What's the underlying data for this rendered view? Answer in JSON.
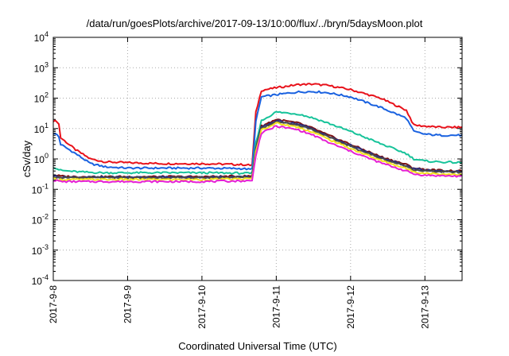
{
  "chart_data": {
    "type": "line",
    "title": "/data/run/goesPlots/archive/2017-09-13/10:00/flux/../bryn/5daysMoon.plot",
    "xlabel": "Coordinated Universal Time (UTC)",
    "ylabel": "cSv/day",
    "y_scale": "log",
    "ylim": [
      0.0001,
      10000
    ],
    "xlim": [
      0,
      5.5
    ],
    "grid": true,
    "x_ticks": [
      {
        "x": 0,
        "label": "2017-9-8"
      },
      {
        "x": 1,
        "label": "2017-9-9"
      },
      {
        "x": 2,
        "label": "2017-9-10"
      },
      {
        "x": 3,
        "label": "2017-9-11"
      },
      {
        "x": 4,
        "label": "2017-9-12"
      },
      {
        "x": 5,
        "label": "2017-9-13"
      }
    ],
    "y_ticks": [
      {
        "value": 0.0001,
        "base": "10",
        "exp": "-4"
      },
      {
        "value": 0.001,
        "base": "10",
        "exp": "-3"
      },
      {
        "value": 0.01,
        "base": "10",
        "exp": "-2"
      },
      {
        "value": 0.1,
        "base": "10",
        "exp": "-1"
      },
      {
        "value": 1,
        "base": "10",
        "exp": "0"
      },
      {
        "value": 10,
        "base": "10",
        "exp": "1"
      },
      {
        "value": 100,
        "base": "10",
        "exp": "2"
      },
      {
        "value": 1000,
        "base": "10",
        "exp": "3"
      },
      {
        "value": 10000,
        "base": "10",
        "exp": "4"
      }
    ],
    "series": [
      {
        "color": "#e8121b",
        "x": [
          0,
          0.07,
          0.1,
          0.3,
          0.5,
          0.7,
          1,
          1.5,
          2,
          2.55,
          2.65,
          2.68,
          2.72,
          2.8,
          3,
          3.3,
          3.5,
          3.7,
          4,
          4.4,
          4.75,
          4.85,
          5,
          5.2,
          5.5
        ],
        "y": [
          18,
          17,
          5,
          2,
          1,
          0.8,
          0.75,
          0.7,
          0.7,
          0.65,
          0.62,
          0.65,
          30,
          180,
          220,
          280,
          290,
          260,
          190,
          100,
          40,
          13,
          12,
          11,
          11
        ]
      },
      {
        "color": "#1a62e0",
        "x": [
          0,
          0.07,
          0.1,
          0.3,
          0.5,
          0.7,
          1,
          1.5,
          2,
          2.55,
          2.65,
          2.68,
          2.72,
          2.8,
          3,
          3.3,
          3.5,
          3.7,
          4,
          4.4,
          4.75,
          4.85,
          5,
          5.2,
          5.5
        ],
        "y": [
          7,
          6,
          3,
          1.5,
          0.7,
          0.55,
          0.5,
          0.5,
          0.5,
          0.48,
          0.45,
          0.48,
          15,
          110,
          130,
          160,
          165,
          150,
          110,
          50,
          22,
          8,
          6.5,
          6,
          6
        ]
      },
      {
        "color": "#17c39a",
        "x": [
          0,
          0.07,
          0.1,
          0.3,
          0.5,
          0.7,
          1,
          1.5,
          2,
          2.55,
          2.65,
          2.68,
          2.72,
          2.8,
          3,
          3.3,
          3.5,
          3.7,
          4,
          4.4,
          4.75,
          4.85,
          5,
          5.2,
          5.5
        ],
        "y": [
          0.55,
          0.45,
          0.42,
          0.38,
          0.36,
          0.35,
          0.35,
          0.35,
          0.35,
          0.34,
          0.33,
          0.35,
          3,
          18,
          35,
          30,
          22,
          15,
          8,
          3.2,
          1.5,
          1,
          0.85,
          0.8,
          0.75
        ]
      },
      {
        "color": "#7d1212",
        "x": [
          0,
          0.07,
          0.1,
          0.3,
          0.5,
          0.7,
          1,
          1.5,
          2,
          2.55,
          2.65,
          2.68,
          2.72,
          2.8,
          3,
          3.3,
          3.5,
          3.7,
          4,
          4.4,
          4.75,
          4.85,
          5,
          5.2,
          5.5
        ],
        "y": [
          0.3,
          0.28,
          0.27,
          0.26,
          0.26,
          0.26,
          0.26,
          0.26,
          0.26,
          0.27,
          0.27,
          0.28,
          2,
          12,
          20,
          15,
          10,
          6,
          3,
          1.2,
          0.65,
          0.5,
          0.45,
          0.42,
          0.4
        ]
      },
      {
        "color": "#2a2f82",
        "x": [
          0,
          0.07,
          0.1,
          0.3,
          0.5,
          0.7,
          1,
          1.5,
          2,
          2.55,
          2.65,
          2.68,
          2.72,
          2.8,
          3,
          3.3,
          3.5,
          3.7,
          4,
          4.4,
          4.75,
          4.85,
          5,
          5.2,
          5.5
        ],
        "y": [
          0.28,
          0.26,
          0.25,
          0.25,
          0.25,
          0.25,
          0.25,
          0.25,
          0.25,
          0.26,
          0.26,
          0.27,
          1.8,
          11,
          18,
          14,
          9.5,
          5.5,
          2.8,
          1.1,
          0.6,
          0.47,
          0.42,
          0.4,
          0.38
        ]
      },
      {
        "color": "#4b4b4b",
        "x": [
          0,
          0.07,
          0.1,
          0.3,
          0.5,
          0.7,
          1,
          1.5,
          2,
          2.55,
          2.65,
          2.68,
          2.72,
          2.8,
          3,
          3.3,
          3.5,
          3.7,
          4,
          4.4,
          4.75,
          4.85,
          5,
          5.2,
          5.5
        ],
        "y": [
          0.26,
          0.25,
          0.24,
          0.24,
          0.24,
          0.24,
          0.24,
          0.24,
          0.24,
          0.25,
          0.25,
          0.26,
          1.7,
          10,
          17,
          13,
          9,
          5.2,
          2.6,
          1.05,
          0.57,
          0.45,
          0.4,
          0.38,
          0.36
        ]
      },
      {
        "color": "#f2e21c",
        "x": [
          0,
          0.07,
          0.1,
          0.3,
          0.5,
          0.7,
          1,
          1.5,
          2,
          2.55,
          2.65,
          2.68,
          2.72,
          2.8,
          3,
          3.3,
          3.5,
          3.7,
          4,
          4.4,
          4.75,
          4.85,
          5,
          5.2,
          5.5
        ],
        "y": [
          0.22,
          0.21,
          0.21,
          0.21,
          0.21,
          0.21,
          0.21,
          0.21,
          0.21,
          0.22,
          0.22,
          0.23,
          1.5,
          9,
          15,
          11,
          7.5,
          4.5,
          2.2,
          0.9,
          0.48,
          0.38,
          0.34,
          0.32,
          0.31
        ]
      },
      {
        "color": "#e520d5",
        "x": [
          0,
          0.07,
          0.1,
          0.3,
          0.5,
          0.7,
          1,
          1.5,
          2,
          2.55,
          2.65,
          2.68,
          2.72,
          2.8,
          3,
          3.3,
          3.5,
          3.7,
          4,
          4.4,
          4.75,
          4.85,
          5,
          5.2,
          5.5
        ],
        "y": [
          0.2,
          0.19,
          0.18,
          0.18,
          0.18,
          0.18,
          0.18,
          0.18,
          0.18,
          0.19,
          0.19,
          0.2,
          1.2,
          7,
          12,
          9,
          6,
          3.5,
          1.8,
          0.75,
          0.4,
          0.32,
          0.29,
          0.28,
          0.27
        ]
      }
    ]
  }
}
